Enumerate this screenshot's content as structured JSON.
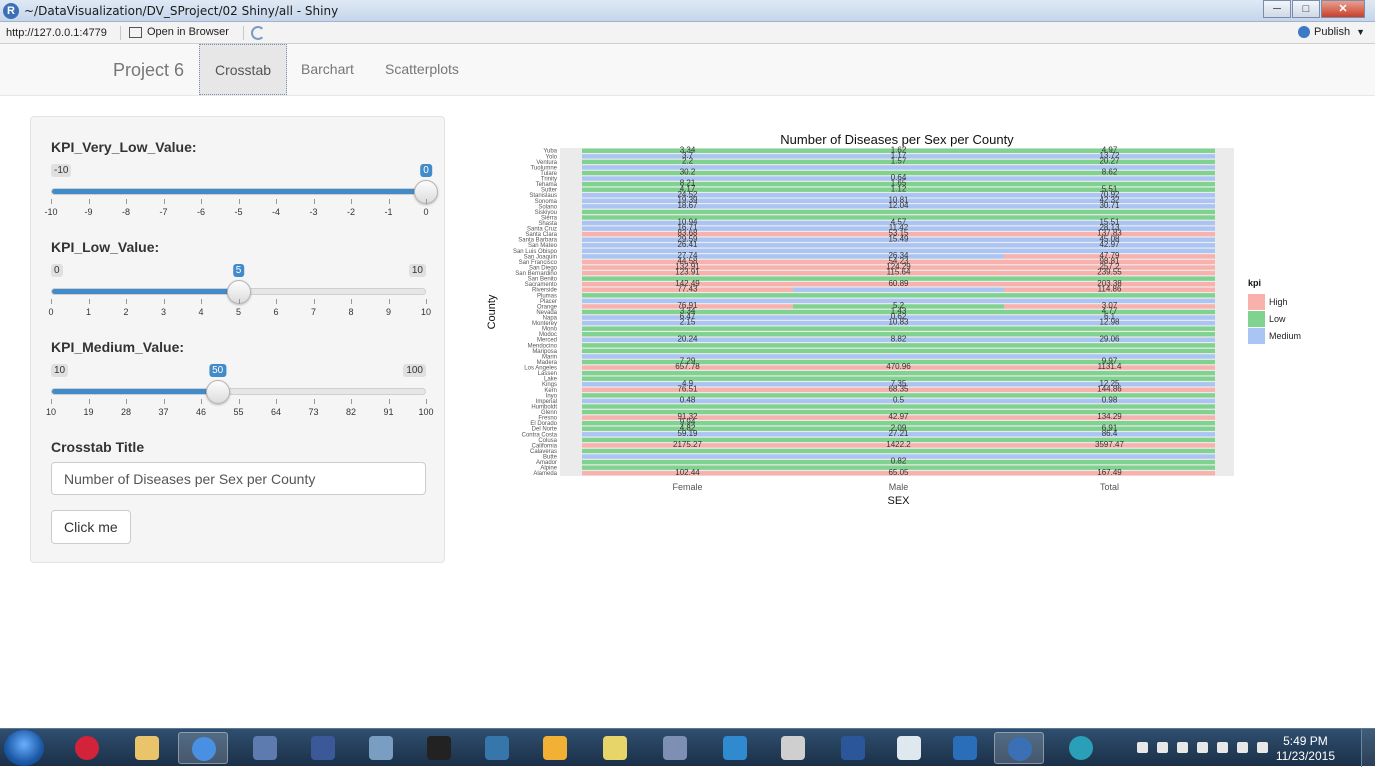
{
  "window": {
    "title": "~/DataVisualization/DV_SProject/02 Shiny/all - Shiny",
    "app_icon_letter": "R",
    "min_icon": "minimize-icon",
    "max_icon": "maximize-icon",
    "close_icon": "close-icon"
  },
  "toolbar": {
    "url": "http://127.0.0.1:4779",
    "open_browser": "Open in Browser",
    "publish": "Publish"
  },
  "navbar": {
    "brand": "Project 6",
    "tabs": [
      {
        "label": "Crosstab",
        "active": true
      },
      {
        "label": "Barchart",
        "active": false
      },
      {
        "label": "Scatterplots",
        "active": false
      }
    ]
  },
  "sidebar": {
    "sliders": [
      {
        "label": "KPI_Very_Low_Value:",
        "min": -10,
        "max": 10,
        "value": 0,
        "axis_min": -10,
        "axis_max": 0,
        "tick_labels": [
          "-10",
          "-9",
          "-8",
          "-7",
          "-6",
          "-5",
          "-4",
          "-3",
          "-2",
          "-1",
          "0"
        ],
        "min_label": "-10",
        "value_label": "0",
        "max_label": ""
      },
      {
        "label": "KPI_Low_Value:",
        "min": 0,
        "max": 10,
        "value": 5,
        "axis_min": 0,
        "axis_max": 10,
        "tick_labels": [
          "0",
          "1",
          "2",
          "3",
          "4",
          "5",
          "6",
          "7",
          "8",
          "9",
          "10"
        ],
        "min_label": "0",
        "value_label": "5",
        "max_label": "10"
      },
      {
        "label": "KPI_Medium_Value:",
        "min": 10,
        "max": 100,
        "value": 50,
        "axis_min": 10,
        "axis_max": 100,
        "tick_labels": [
          "10",
          "19",
          "28",
          "37",
          "46",
          "55",
          "64",
          "73",
          "82",
          "91",
          "100"
        ],
        "min_label": "10",
        "value_label": "50",
        "max_label": "100"
      }
    ],
    "title_field_label": "Crosstab Title",
    "title_field_value": "Number of Diseases per Sex per County",
    "button_label": "Click me"
  },
  "chart_data": {
    "type": "heatmap",
    "title": "Number of Diseases per Sex per County",
    "xlabel": "SEX",
    "ylabel": "County",
    "x": [
      "Female",
      "Male",
      "Total"
    ],
    "legend_title": "kpi",
    "legend": [
      {
        "name": "High",
        "color": "#f8b1ac"
      },
      {
        "name": "Low",
        "color": "#7fd38f"
      },
      {
        "name": "Medium",
        "color": "#aac4f3"
      }
    ],
    "legend_position": "right",
    "counties": [
      "Yuba",
      "Yolo",
      "Ventura",
      "Tuolumne",
      "Tulare",
      "Trinity",
      "Tehama",
      "Sutter",
      "Stanislaus",
      "Sonoma",
      "Solano",
      "Siskiyou",
      "Sierra",
      "Shasta",
      "Santa Cruz",
      "Santa Clara",
      "Santa Barbara",
      "San Mateo",
      "San Luis Obispo",
      "San Joaquin",
      "San Francisco",
      "San Diego",
      "San Bernardino",
      "San Benito",
      "Sacramento",
      "Riverside",
      "Plumas",
      "Placer",
      "Orange",
      "Nevada",
      "Napa",
      "Monterey",
      "Mono",
      "Modoc",
      "Merced",
      "Mendocino",
      "Mariposa",
      "Marin",
      "Madera",
      "Los Angeles",
      "Lassen",
      "Lake",
      "Kings",
      "Kern",
      "Inyo",
      "Imperial",
      "Humboldt",
      "Glenn",
      "Fresno",
      "El Dorado",
      "Del Norte",
      "Contra Costa",
      "Colusa",
      "California",
      "Calaveras",
      "Butte",
      "Amador",
      "Alpine",
      "Alameda"
    ],
    "cells": [
      [
        "L",
        "L",
        "L"
      ],
      [
        "M",
        "M",
        "M"
      ],
      [
        "L",
        "L",
        "L"
      ],
      [
        "M",
        "M",
        "M"
      ],
      [
        "L",
        "L",
        "L"
      ],
      [
        "M",
        "M",
        "M"
      ],
      [
        "L",
        "L",
        "L"
      ],
      [
        "L",
        "L",
        "L"
      ],
      [
        "M",
        "M",
        "M"
      ],
      [
        "M",
        "M",
        "M"
      ],
      [
        "M",
        "M",
        "M"
      ],
      [
        "L",
        "L",
        "L"
      ],
      [
        "L",
        "L",
        "L"
      ],
      [
        "M",
        "M",
        "M"
      ],
      [
        "M",
        "M",
        "M"
      ],
      [
        "H",
        "H",
        "H"
      ],
      [
        "M",
        "M",
        "M"
      ],
      [
        "M",
        "M",
        "M"
      ],
      [
        "M",
        "M",
        "M"
      ],
      [
        "M",
        "M",
        "H"
      ],
      [
        "H",
        "H",
        "H"
      ],
      [
        "H",
        "H",
        "H"
      ],
      [
        "H",
        "H",
        "H"
      ],
      [
        "L",
        "L",
        "L"
      ],
      [
        "H",
        "H",
        "H"
      ],
      [
        "H",
        "M",
        "H"
      ],
      [
        "L",
        "L",
        "L"
      ],
      [
        "M",
        "M",
        "M"
      ],
      [
        "H",
        "L",
        "H"
      ],
      [
        "L",
        "L",
        "L"
      ],
      [
        "M",
        "M",
        "M"
      ],
      [
        "M",
        "M",
        "M"
      ],
      [
        "L",
        "L",
        "L"
      ],
      [
        "L",
        "L",
        "L"
      ],
      [
        "M",
        "M",
        "M"
      ],
      [
        "L",
        "L",
        "L"
      ],
      [
        "L",
        "L",
        "L"
      ],
      [
        "M",
        "M",
        "M"
      ],
      [
        "L",
        "L",
        "L"
      ],
      [
        "H",
        "H",
        "H"
      ],
      [
        "L",
        "L",
        "L"
      ],
      [
        "L",
        "L",
        "L"
      ],
      [
        "M",
        "M",
        "M"
      ],
      [
        "H",
        "H",
        "H"
      ],
      [
        "L",
        "L",
        "L"
      ],
      [
        "M",
        "M",
        "M"
      ],
      [
        "L",
        "L",
        "L"
      ],
      [
        "L",
        "L",
        "L"
      ],
      [
        "H",
        "H",
        "H"
      ],
      [
        "L",
        "L",
        "L"
      ],
      [
        "L",
        "L",
        "L"
      ],
      [
        "M",
        "M",
        "M"
      ],
      [
        "L",
        "L",
        "L"
      ],
      [
        "H",
        "H",
        "H"
      ],
      [
        "L",
        "L",
        "L"
      ],
      [
        "M",
        "M",
        "M"
      ],
      [
        "L",
        "L",
        "L"
      ],
      [
        "L",
        "L",
        "L"
      ],
      [
        "H",
        "H",
        "H"
      ]
    ],
    "labels_female": [
      "3.34",
      "3.7",
      "2.2",
      "",
      "30.2",
      "",
      "8.21",
      "4.17",
      "24.52",
      "19.39",
      "18.67",
      "",
      "",
      "10.94",
      "16.71",
      "83.68",
      "29.59",
      "26.41",
      "",
      "27.74",
      "44.58",
      "132.91",
      "123.91",
      "",
      "142.49",
      "77.43",
      "",
      "",
      "76.91",
      "3.34",
      "6.47",
      "2.15",
      "",
      "",
      "20.24",
      "",
      "",
      "",
      "7.29",
      "657.78",
      "",
      "",
      "4.9",
      "76.51",
      "",
      "0.48",
      "",
      "",
      "91.32",
      "9.94",
      "4.82",
      "59.19",
      "",
      "2175.27",
      "",
      "",
      "",
      "",
      "102.44"
    ],
    "labels_male": [
      "1.62",
      "1.17",
      "1.57",
      "",
      "",
      "0.64",
      "1.65",
      "1.12",
      "",
      "10.81",
      "12.04",
      "",
      "",
      "4.57",
      "11.42",
      "53.15",
      "15.49",
      "",
      "",
      "26.34",
      "54.23",
      "124.29",
      "115.64",
      "",
      "60.89",
      "",
      "",
      "",
      "5.2",
      "1.43",
      "0.62",
      "10.83",
      "",
      "",
      "8.82",
      "",
      "",
      "",
      "",
      "470.96",
      "",
      "",
      "7.35",
      "68.35",
      "",
      "0.5",
      "",
      "",
      "42.97",
      "",
      "2.09",
      "27.21",
      "",
      "1422.2",
      "",
      "",
      "0.82",
      "",
      "65.05"
    ],
    "labels_total": [
      "4.97",
      "13.72",
      "20.27",
      "",
      "8.62",
      "",
      "",
      "5.51",
      "70.92",
      "42.32",
      "30.71",
      "",
      "",
      "15.51",
      "28.13",
      "137.83",
      "45.08",
      "42.97",
      "",
      "47.79",
      "98.81",
      "257.2",
      "239.55",
      "",
      "203.38",
      "114.86",
      "",
      "",
      "3.07",
      "4.77",
      "6.1",
      "12.98",
      "",
      "",
      "29.06",
      "",
      "",
      "",
      "9.97",
      "1131.4",
      "",
      "",
      "12.25",
      "144.86",
      "",
      "0.98",
      "",
      "",
      "134.29",
      "",
      "6.91",
      "86.4",
      "",
      "3597.47",
      "",
      "",
      "",
      "",
      "167.49"
    ]
  },
  "taskbar": {
    "apps": [
      "itunes-icon",
      "file-explorer-icon",
      "chrome-icon",
      "hdd-icon",
      "sql-icon",
      "python-file-icon",
      "terminal-icon",
      "python-icon",
      "paint-icon",
      "folder-icon",
      "calculator-icon",
      "media-icon",
      "notes-icon",
      "word-icon",
      "scanner-icon",
      "inkscape-icon",
      "r-icon",
      "settings-icon"
    ],
    "time": "5:49 PM",
    "date": "11/23/2015"
  }
}
